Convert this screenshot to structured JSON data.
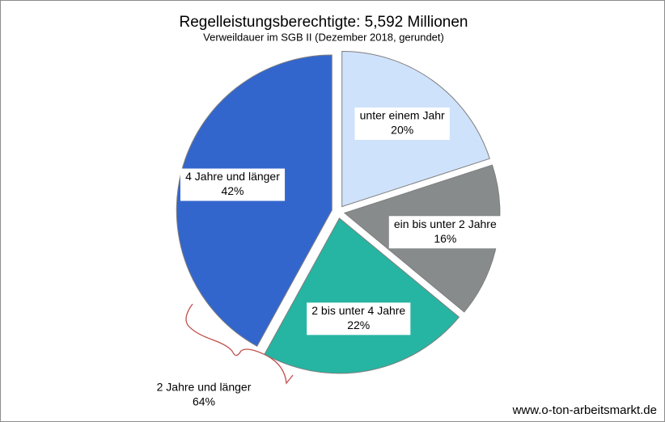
{
  "chart_data": {
    "type": "pie",
    "title": "Regelleistungsberechtigte: 5,592 Millionen",
    "subtitle": "Verweildauer  im SGB II (Dezember  2018, gerundet)",
    "categories": [
      "unter einem Jahr",
      "ein bis unter 2 Jahre",
      "2 bis unter 4 Jahre",
      "4 Jahre und länger"
    ],
    "values": [
      20,
      16,
      22,
      42
    ],
    "value_labels": [
      "20%",
      "16%",
      "22%",
      "42%"
    ],
    "colors": [
      "#cfe2fb",
      "#878b8c",
      "#26b5a2",
      "#3366cc"
    ],
    "annotation": [
      "2 Jahre und länger",
      "64%"
    ],
    "source": "www.o-ton-arbeitsmarkt.de"
  }
}
